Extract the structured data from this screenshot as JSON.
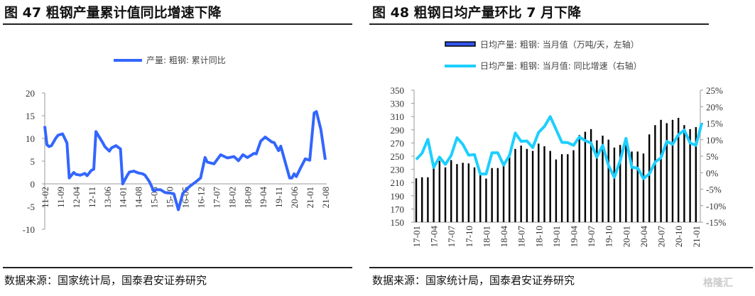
{
  "panels": [
    {
      "title": "图 47  粗钢产量累计值同比增速下降",
      "source": "数据来源：国家统计局，国泰君安证券研究"
    },
    {
      "title": "图 48  粗钢日均产量环比 7 月下降",
      "source": "数据来源：国家统计局，国泰君安证券研究"
    }
  ],
  "watermark": "格隆汇",
  "chart_data": [
    {
      "type": "line",
      "title": "",
      "legend": "top-center",
      "ylim": [
        -10,
        20
      ],
      "yticks": [
        "20",
        "15",
        "10",
        "5",
        "0",
        "-5",
        "-10"
      ],
      "xticks": [
        "11-02",
        "11-09",
        "12-04",
        "12-11",
        "13-06",
        "14-01",
        "14-08",
        "15-03",
        "15-10",
        "16-05",
        "16-12",
        "17-07",
        "18-02",
        "18-09",
        "19-04",
        "19-11",
        "20-06",
        "21-01",
        "21-08"
      ],
      "series": [
        {
          "name": "产量: 粗钢: 累计同比",
          "color": "#3366ff",
          "points": [
            [
              "11-02",
              12.7
            ],
            [
              "11-03",
              8.6
            ],
            [
              "11-04",
              8.2
            ],
            [
              "11-05",
              8.4
            ],
            [
              "11-07",
              10.1
            ],
            [
              "11-08",
              10.7
            ],
            [
              "11-10",
              11.0
            ],
            [
              "11-12",
              9.0
            ],
            [
              "12-01",
              1.3
            ],
            [
              "12-03",
              2.5
            ],
            [
              "12-04",
              2.1
            ],
            [
              "12-06",
              1.9
            ],
            [
              "12-08",
              2.3
            ],
            [
              "12-09",
              1.8
            ],
            [
              "12-11",
              3.0
            ],
            [
              "12-12",
              3.2
            ],
            [
              "13-01",
              11.5
            ],
            [
              "13-04",
              9.1
            ],
            [
              "13-05",
              8.2
            ],
            [
              "13-07",
              7.2
            ],
            [
              "13-08",
              7.9
            ],
            [
              "13-10",
              8.4
            ],
            [
              "13-12",
              7.7
            ],
            [
              "14-01",
              0.0
            ],
            [
              "14-03",
              1.8
            ],
            [
              "14-04",
              2.6
            ],
            [
              "14-06",
              2.8
            ],
            [
              "14-08",
              2.4
            ],
            [
              "14-10",
              2.2
            ],
            [
              "14-11",
              1.9
            ],
            [
              "15-01",
              0.5
            ],
            [
              "15-03",
              -1.6
            ],
            [
              "15-04",
              -1.3
            ],
            [
              "15-06",
              -1.3
            ],
            [
              "15-08",
              -1.9
            ],
            [
              "15-10",
              -2.0
            ],
            [
              "15-12",
              -2.2
            ],
            [
              "16-02",
              -5.7
            ],
            [
              "16-04",
              -2.1
            ],
            [
              "16-07",
              -0.6
            ],
            [
              "16-10",
              0.5
            ],
            [
              "16-12",
              1.3
            ],
            [
              "17-02",
              5.8
            ],
            [
              "17-03",
              4.8
            ],
            [
              "17-06",
              4.4
            ],
            [
              "17-09",
              6.4
            ],
            [
              "17-12",
              5.7
            ],
            [
              "18-03",
              6.0
            ],
            [
              "18-05",
              5.1
            ],
            [
              "18-07",
              6.4
            ],
            [
              "18-09",
              5.8
            ],
            [
              "18-12",
              6.7
            ],
            [
              "19-01",
              6.6
            ],
            [
              "19-03",
              9.4
            ],
            [
              "19-05",
              10.3
            ],
            [
              "19-08",
              9.2
            ],
            [
              "19-09",
              9.1
            ],
            [
              "19-11",
              7.3
            ],
            [
              "19-12",
              8.3
            ],
            [
              "20-04",
              1.3
            ],
            [
              "20-05",
              1.3
            ],
            [
              "20-06",
              2.2
            ],
            [
              "20-07",
              1.6
            ],
            [
              "20-09",
              3.6
            ],
            [
              "20-11",
              5.5
            ],
            [
              "21-01",
              5.2
            ],
            [
              "21-03",
              15.6
            ],
            [
              "21-04",
              15.9
            ],
            [
              "21-06",
              12.0
            ],
            [
              "21-08",
              5.3
            ]
          ]
        }
      ]
    },
    {
      "type": "bar+line",
      "title": "",
      "legend": "top-center",
      "ylim": [
        150,
        350
      ],
      "y2lim": [
        -15,
        25
      ],
      "yticks": [
        "350",
        "330",
        "310",
        "290",
        "270",
        "250",
        "230",
        "210",
        "190",
        "170",
        "150"
      ],
      "y2ticks": [
        "25%",
        "20%",
        "15%",
        "10%",
        "5%",
        "0%",
        "-5%",
        "-10%",
        "-15%"
      ],
      "xticks": [
        "17-01",
        "17-04",
        "17-07",
        "17-10",
        "18-01",
        "18-04",
        "18-07",
        "18-10",
        "19-01",
        "19-04",
        "19-07",
        "19-10",
        "20-01",
        "20-04",
        "20-07",
        "20-10",
        "21-01"
      ],
      "x": [
        "17-01",
        "17-02",
        "17-03",
        "17-04",
        "17-05",
        "17-06",
        "17-07",
        "17-08",
        "17-09",
        "17-10",
        "17-11",
        "17-12",
        "18-01",
        "18-02",
        "18-03",
        "18-04",
        "18-05",
        "18-06",
        "18-07",
        "18-08",
        "18-09",
        "18-10",
        "18-11",
        "18-12",
        "19-01",
        "19-02",
        "19-03",
        "19-04",
        "19-05",
        "19-06",
        "19-07",
        "19-08",
        "19-09",
        "19-10",
        "19-11",
        "19-12",
        "20-01",
        "20-02",
        "20-03",
        "20-04",
        "20-05",
        "20-06",
        "20-07",
        "20-08",
        "20-09",
        "20-10",
        "20-11",
        "20-12",
        "21-01",
        "21-02"
      ],
      "series": [
        {
          "name": "日均产量: 粗钢: 当月值（万吨/天，左轴）",
          "axis": "left",
          "kind": "bar",
          "color": "#000000",
          "legend_color": "#3355ee",
          "values": [
            216.5,
            218,
            218,
            235,
            243,
            233,
            244,
            238,
            240,
            239,
            233,
            221,
            216,
            232,
            232,
            241,
            250,
            261,
            266,
            261,
            258,
            269,
            265,
            258,
            245,
            253,
            253,
            259,
            282,
            287,
            291,
            274,
            281,
            275,
            263,
            267,
            268,
            257,
            257,
            254,
            283,
            297,
            305,
            300,
            305,
            308,
            297,
            291,
            294,
            null
          ]
        },
        {
          "name": "日均产量: 粗钢: 当月值: 同比增速（右轴）",
          "axis": "right",
          "kind": "line",
          "color": "#1ccfff",
          "values": [
            4.0,
            5.9,
            10.1,
            1.6,
            4.7,
            2.5,
            5.2,
            10.6,
            8.6,
            5.3,
            5.5,
            -0.4,
            -0.4,
            6.0,
            6.0,
            2.3,
            5.2,
            12.0,
            9.5,
            9.6,
            7.6,
            12.2,
            14.0,
            17.0,
            13.1,
            9.2,
            9.1,
            8.3,
            10.8,
            9.7,
            9.0,
            4.7,
            8.3,
            2.2,
            -1.4,
            3.6,
            10.4,
            1.6,
            1.4,
            -1.8,
            -0.4,
            3.2,
            4.5,
            9.5,
            8.6,
            11.5,
            12.9,
            9.0,
            8.3,
            15.0
          ]
        }
      ]
    }
  ]
}
